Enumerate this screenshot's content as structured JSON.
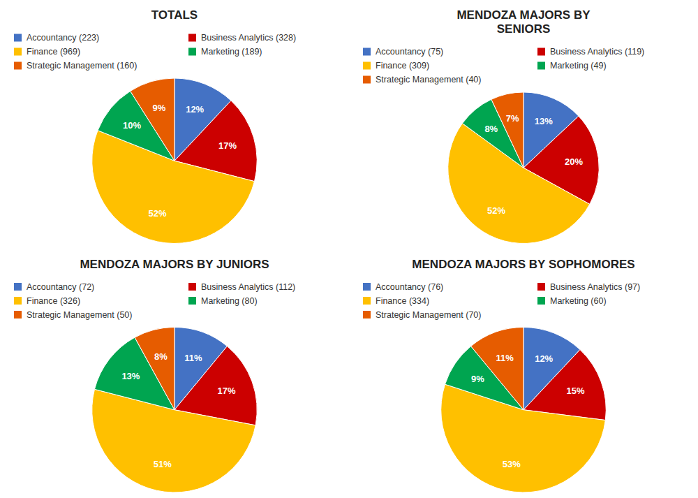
{
  "chart_data": [
    {
      "type": "pie",
      "title": "TOTALS",
      "categories": [
        "Accountancy (223)",
        "Business Analytics (328)",
        "Finance (969)",
        "Marketing (189)",
        "Strategic Management (160)"
      ],
      "values": [
        12,
        17,
        52,
        10,
        9
      ],
      "value_labels": [
        "12%",
        "17%",
        "52%",
        "10%",
        "9%"
      ],
      "colors": [
        "#4472C4",
        "#CC0000",
        "#FFC000",
        "#00A550",
        "#E65C00"
      ],
      "data_labels": true,
      "legend": "top"
    },
    {
      "type": "pie",
      "title": "MENDOZA MAJORS BY\nSENIORS",
      "categories": [
        "Accountancy (75)",
        "Business Analytics (119)",
        "Finance (309)",
        "Marketing (49)",
        "Strategic Management (40)"
      ],
      "values": [
        13,
        20,
        52,
        8,
        7
      ],
      "value_labels": [
        "13%",
        "20%",
        "52%",
        "8%",
        "7%"
      ],
      "colors": [
        "#4472C4",
        "#CC0000",
        "#FFC000",
        "#00A550",
        "#E65C00"
      ],
      "data_labels": true,
      "legend": "top"
    },
    {
      "type": "pie",
      "title": "MENDOZA MAJORS BY JUNIORS",
      "categories": [
        "Accountancy (72)",
        "Business Analytics (112)",
        "Finance (326)",
        "Marketing (80)",
        "Strategic Management (50)"
      ],
      "values": [
        11,
        17,
        51,
        13,
        8
      ],
      "value_labels": [
        "11%",
        "17%",
        "51%",
        "13%",
        "8%"
      ],
      "colors": [
        "#4472C4",
        "#CC0000",
        "#FFC000",
        "#00A550",
        "#E65C00"
      ],
      "data_labels": true,
      "legend": "top"
    },
    {
      "type": "pie",
      "title": "MENDOZA MAJORS BY SOPHOMORES",
      "categories": [
        "Accountancy (76)",
        "Business Analytics (97)",
        "Finance (334)",
        "Marketing (60)",
        "Strategic Management (70)"
      ],
      "values": [
        12,
        15,
        53,
        9,
        11
      ],
      "value_labels": [
        "12%",
        "15%",
        "53%",
        "9%",
        "11%"
      ],
      "colors": [
        "#4472C4",
        "#CC0000",
        "#FFC000",
        "#00A550",
        "#E65C00"
      ],
      "data_labels": true,
      "legend": "top"
    }
  ]
}
